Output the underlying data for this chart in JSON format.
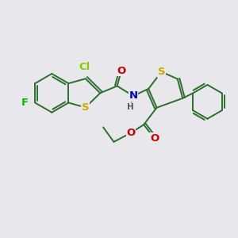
{
  "bg_color": "#e8e8ec",
  "bond_color": "#2d6e2d",
  "bond_width": 1.4,
  "atom_colors": {
    "S": "#ccaa00",
    "N": "#0000cc",
    "O": "#cc0000",
    "F": "#00bb00",
    "Cl": "#88cc00",
    "C": "#2d6e2d",
    "H": "#555555"
  },
  "font_size": 8.5
}
